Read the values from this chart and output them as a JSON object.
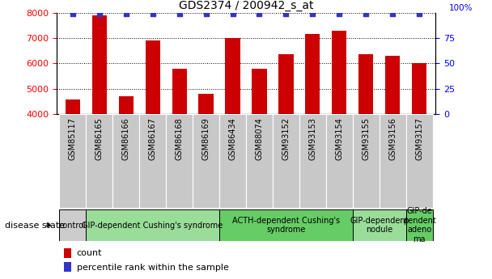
{
  "title": "GDS2374 / 200942_s_at",
  "samples": [
    "GSM85117",
    "GSM86165",
    "GSM86166",
    "GSM86167",
    "GSM86168",
    "GSM86169",
    "GSM86434",
    "GSM88074",
    "GSM93152",
    "GSM93153",
    "GSM93154",
    "GSM93155",
    "GSM93156",
    "GSM93157"
  ],
  "counts": [
    4600,
    7900,
    4700,
    6900,
    5800,
    4800,
    7000,
    5800,
    6350,
    7150,
    7300,
    6350,
    6300,
    6000
  ],
  "bar_color": "#cc0000",
  "dot_color": "#3333cc",
  "ylim_left": [
    4000,
    8000
  ],
  "ylim_right": [
    0,
    100
  ],
  "yticks_left": [
    4000,
    5000,
    6000,
    7000,
    8000
  ],
  "yticks_right": [
    0,
    25,
    50,
    75
  ],
  "ytick_right_labels": [
    "0",
    "25",
    "50",
    "75"
  ],
  "groups": [
    {
      "label": "control",
      "start": 0,
      "end": 1,
      "color": "#cccccc"
    },
    {
      "label": "GIP-dependent Cushing's syndrome",
      "start": 1,
      "end": 6,
      "color": "#99dd99"
    },
    {
      "label": "ACTH-dependent Cushing's\nsyndrome",
      "start": 6,
      "end": 11,
      "color": "#66cc66"
    },
    {
      "label": "GIP-dependent\nnodule",
      "start": 11,
      "end": 13,
      "color": "#99dd99"
    },
    {
      "label": "GIP-de\npendent\nadeno\nma",
      "start": 13,
      "end": 14,
      "color": "#66cc66"
    }
  ],
  "sample_box_color": "#c8c8c8",
  "xlabel_disease_state": "disease state",
  "legend_count_label": "count",
  "legend_percentile_label": "percentile rank within the sample",
  "title_fontsize": 10,
  "tick_fontsize": 8,
  "sample_fontsize": 7,
  "group_fontsize": 7
}
